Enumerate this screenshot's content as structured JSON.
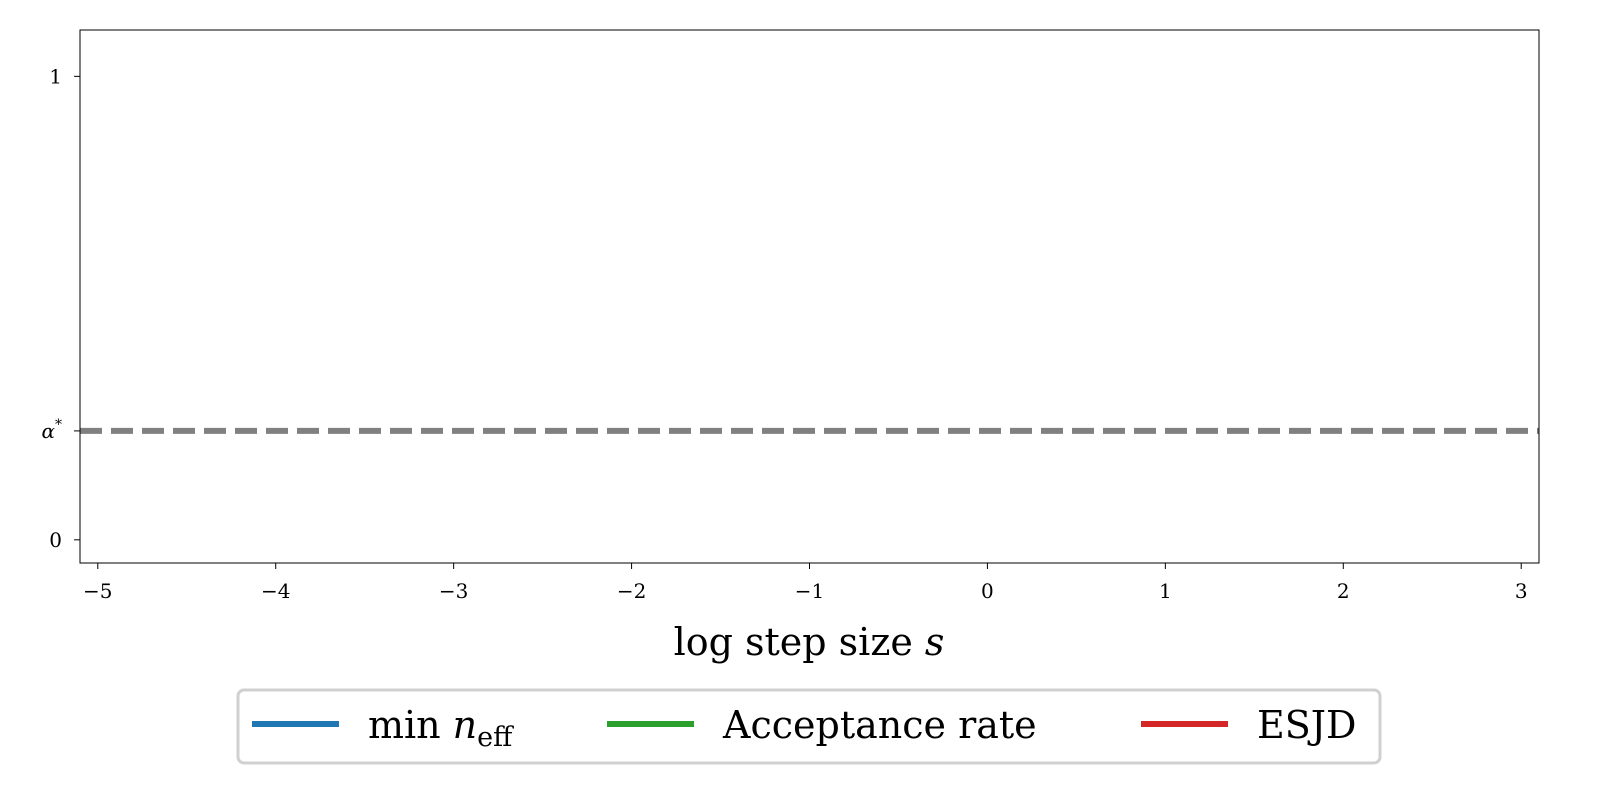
{
  "chart_data": {
    "type": "line",
    "title": "",
    "xlabel": "log step size",
    "xlabel_var": "s",
    "ylabel": "",
    "xlim": [
      -5.1,
      3.1
    ],
    "ylim": [
      -0.05,
      1.1
    ],
    "x_ticks": [
      {
        "value": -5,
        "label": "−5"
      },
      {
        "value": -4,
        "label": "−4"
      },
      {
        "value": -3,
        "label": "−3"
      },
      {
        "value": -2,
        "label": "−2"
      },
      {
        "value": -1,
        "label": "−1"
      },
      {
        "value": 0,
        "label": "0"
      },
      {
        "value": 1,
        "label": "1"
      },
      {
        "value": 2,
        "label": "2"
      },
      {
        "value": 3,
        "label": "3"
      }
    ],
    "y_ticks": [
      {
        "value": 0,
        "label": "0"
      },
      {
        "value": 0.235,
        "label": "α",
        "sup": "*"
      },
      {
        "value": 1,
        "label": "1"
      }
    ],
    "reference_line": {
      "y": 0.235,
      "style": "dashed",
      "color": "#808080"
    },
    "grid": false,
    "legend_placement": "bottom-center",
    "series": [
      {
        "name": "min",
        "name_var": "n",
        "name_sub": "eff",
        "color": "#1f77b4",
        "x": [],
        "y": []
      },
      {
        "name": "Acceptance rate",
        "color": "#2ca02c",
        "x": [],
        "y": []
      },
      {
        "name": "ESJD",
        "color": "#d62728",
        "x": [],
        "y": []
      }
    ]
  }
}
